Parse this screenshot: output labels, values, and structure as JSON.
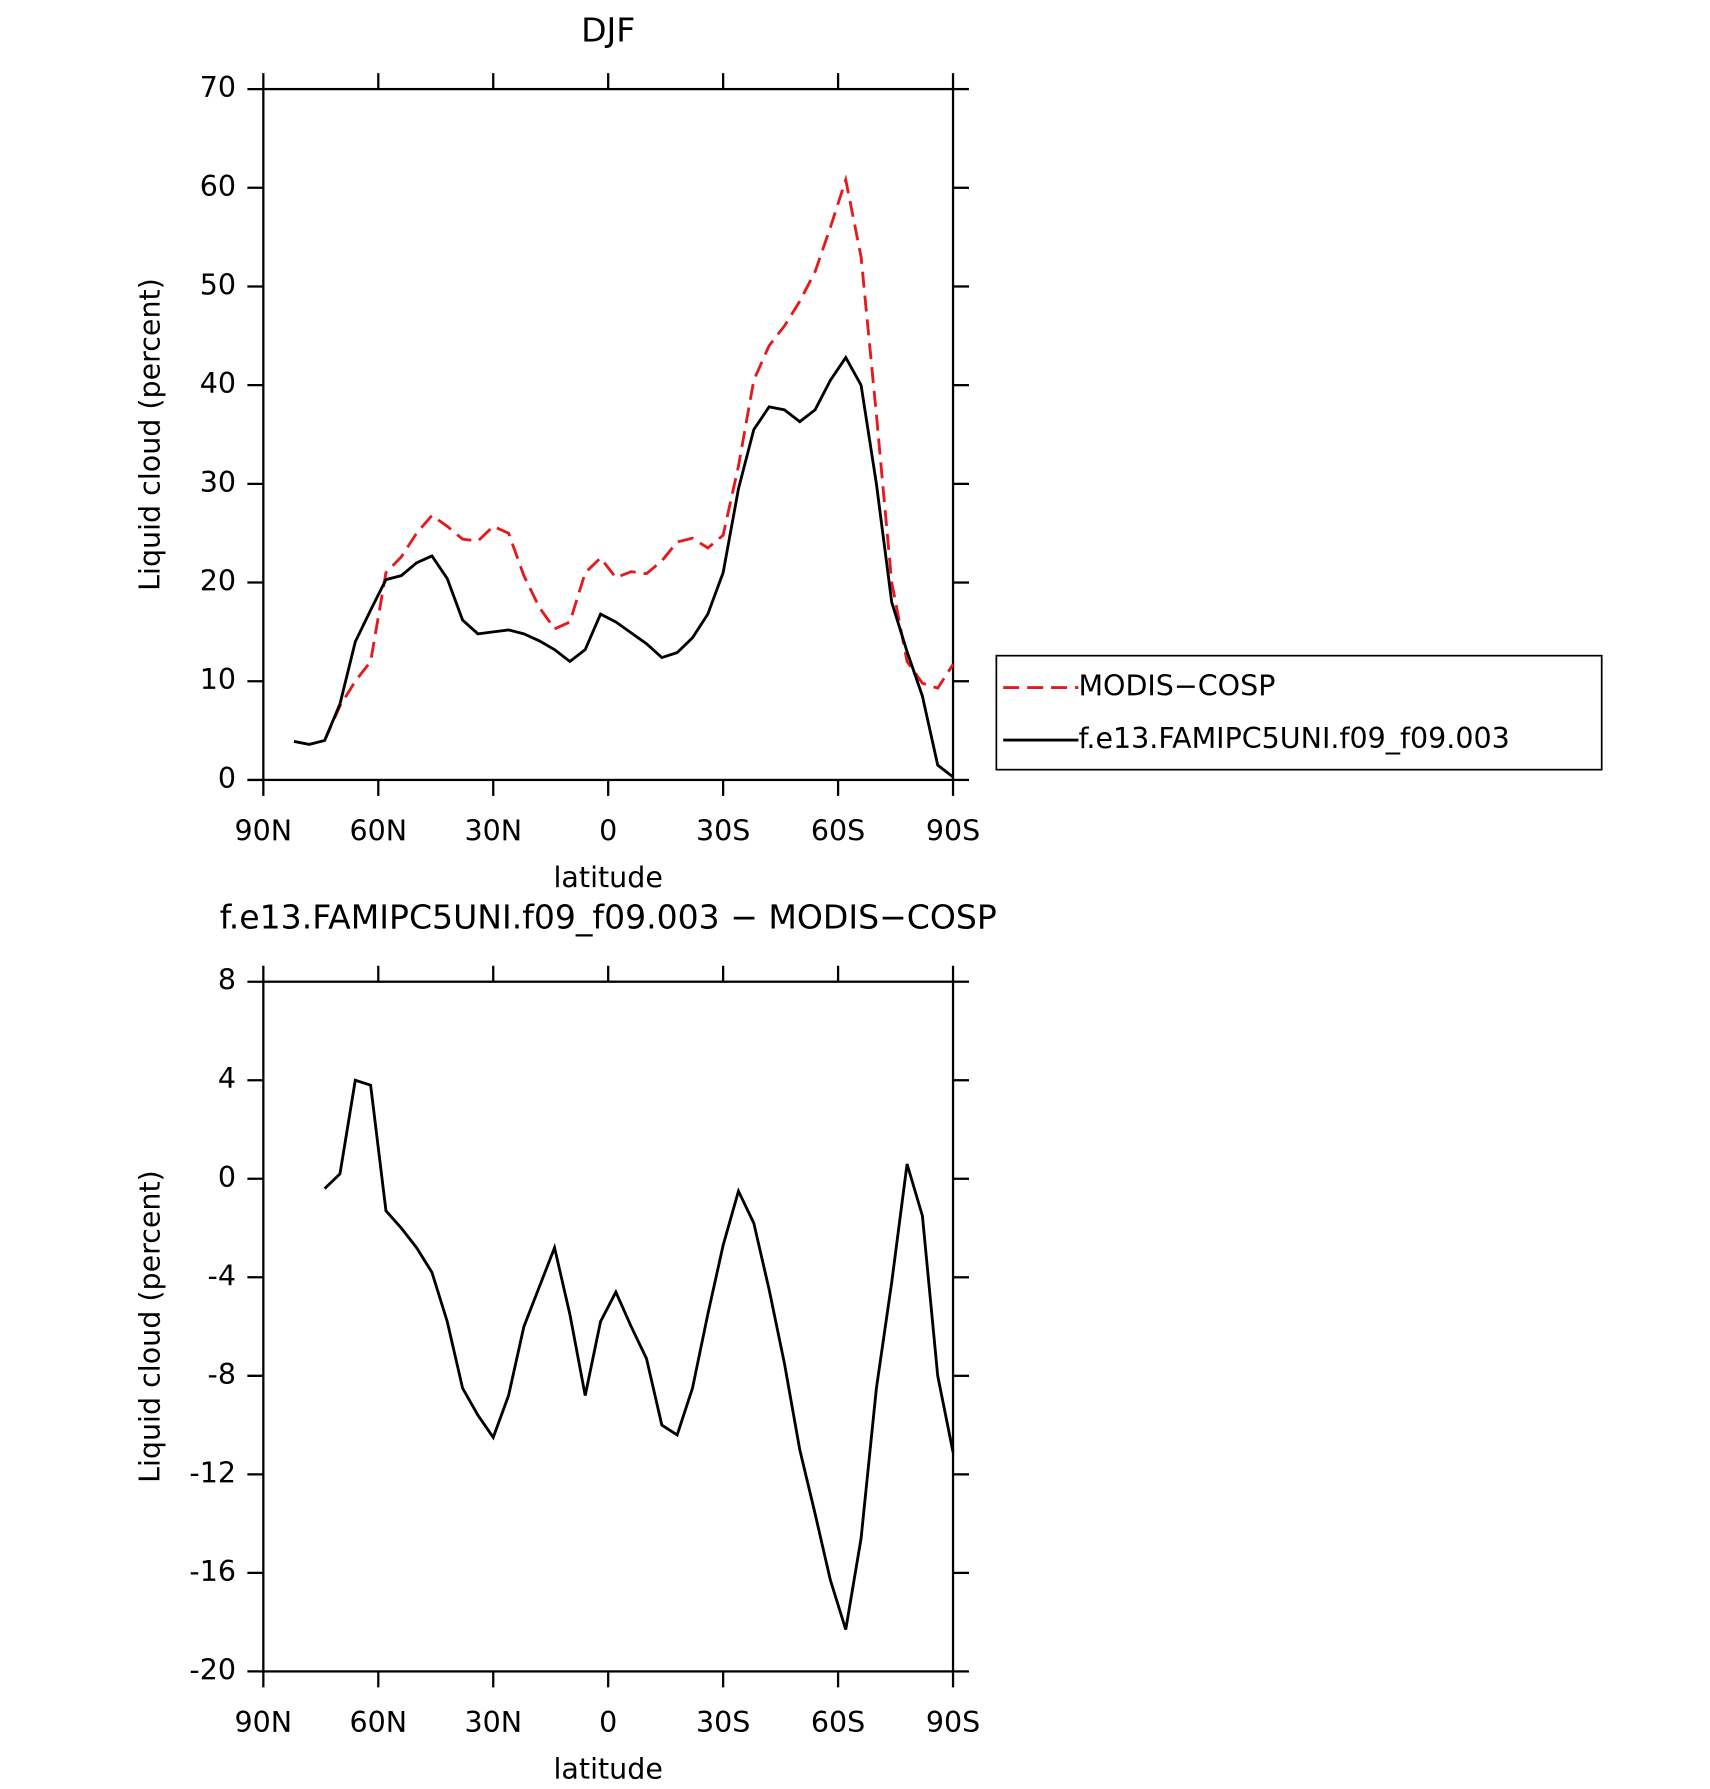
{
  "chart_data": [
    {
      "type": "line",
      "title": "DJF",
      "xlabel": "latitude",
      "ylabel": "Liquid cloud (percent)",
      "x": [
        82,
        78,
        74,
        70,
        66,
        62,
        58,
        54,
        50,
        46,
        42,
        38,
        34,
        30,
        26,
        22,
        18,
        14,
        10,
        6,
        2,
        -2,
        -6,
        -10,
        -14,
        -18,
        -22,
        -26,
        -30,
        -34,
        -38,
        -42,
        -46,
        -50,
        -54,
        -58,
        -62,
        -66,
        -70,
        -74,
        -78,
        -82,
        -86,
        -90
      ],
      "series": [
        {
          "name": "MODIS−COSP",
          "color": "#e41a1c",
          "dash": true,
          "values": [
            null,
            null,
            4,
            7.5,
            10,
            12,
            21,
            22.6,
            25,
            26.8,
            25.7,
            24.4,
            24.2,
            25.7,
            25,
            20.7,
            17.5,
            15.3,
            16,
            21,
            22.5,
            20.5,
            21.1,
            20.9,
            22.2,
            24.1,
            24.5,
            23.5,
            24.8,
            31.8,
            40.5,
            44,
            46,
            48.5,
            51.5,
            56,
            60.8,
            53,
            37,
            20,
            12,
            9.8,
            9.3,
            11.7
          ]
        },
        {
          "name": "f.e13.FAMIPC5UNI.f09_f09.003",
          "color": "#000000",
          "dash": false,
          "values": [
            3.9,
            3.6,
            4,
            7.7,
            14,
            17.2,
            20.3,
            20.7,
            22,
            22.7,
            20.4,
            16.2,
            14.8,
            15,
            15.2,
            14.8,
            14.1,
            13.2,
            12,
            13.2,
            16.8,
            16,
            14.9,
            13.8,
            12.4,
            12.9,
            14.4,
            16.8,
            21,
            29.5,
            35.5,
            37.8,
            37.5,
            36.3,
            37.5,
            40.5,
            42.8,
            40,
            30,
            18,
            13,
            8.5,
            1.5,
            0.3
          ]
        }
      ],
      "xlim": [
        90,
        -90
      ],
      "xticks": [
        {
          "value": 90,
          "label": "90N"
        },
        {
          "value": 60,
          "label": "60N"
        },
        {
          "value": 30,
          "label": "30N"
        },
        0,
        {
          "value": -30,
          "label": "30S"
        },
        {
          "value": -60,
          "label": "60S"
        },
        {
          "value": -90,
          "label": "90S"
        }
      ],
      "ylim": [
        0,
        70
      ],
      "yticks": [
        0,
        10,
        20,
        30,
        40,
        50,
        60,
        70
      ],
      "legend": "right"
    },
    {
      "type": "line",
      "title": "f.e13.FAMIPC5UNI.f09_f09.003 − MODIS−COSP",
      "xlabel": "latitude",
      "ylabel": "Liquid cloud (percent)",
      "x": [
        82,
        78,
        74,
        70,
        66,
        62,
        58,
        54,
        50,
        46,
        42,
        38,
        34,
        30,
        26,
        22,
        18,
        14,
        10,
        6,
        2,
        -2,
        -6,
        -10,
        -14,
        -18,
        -22,
        -26,
        -30,
        -34,
        -38,
        -42,
        -46,
        -50,
        -54,
        -58,
        -62,
        -66,
        -70,
        -74,
        -78,
        -82,
        -86,
        -90
      ],
      "color": "#000000",
      "values": [
        null,
        null,
        -0.4,
        0.2,
        4,
        3.8,
        -1.3,
        -2,
        -2.8,
        -3.8,
        -5.8,
        -8.5,
        -9.6,
        -10.5,
        -8.8,
        -6,
        -4.4,
        -2.8,
        -5.5,
        -8.8,
        -5.8,
        -4.6,
        -6,
        -7.3,
        -10,
        -10.4,
        -8.5,
        -5.5,
        -2.7,
        -0.5,
        -1.8,
        -4.5,
        -7.5,
        -11,
        -13.6,
        -16.3,
        -18.3,
        -14.6,
        -8.5,
        -4.2,
        0.6,
        -1.5,
        -8,
        -11.1
      ],
      "xlim": [
        90,
        -90
      ],
      "xticks": [
        {
          "value": 90,
          "label": "90N"
        },
        {
          "value": 60,
          "label": "60N"
        },
        {
          "value": 30,
          "label": "30N"
        },
        0,
        {
          "value": -30,
          "label": "30S"
        },
        {
          "value": -60,
          "label": "60S"
        },
        {
          "value": -90,
          "label": "90S"
        }
      ],
      "ylim": [
        -20,
        8
      ],
      "yticks": [
        -20,
        -16,
        -12,
        -8,
        -4,
        0,
        4,
        8
      ]
    }
  ]
}
